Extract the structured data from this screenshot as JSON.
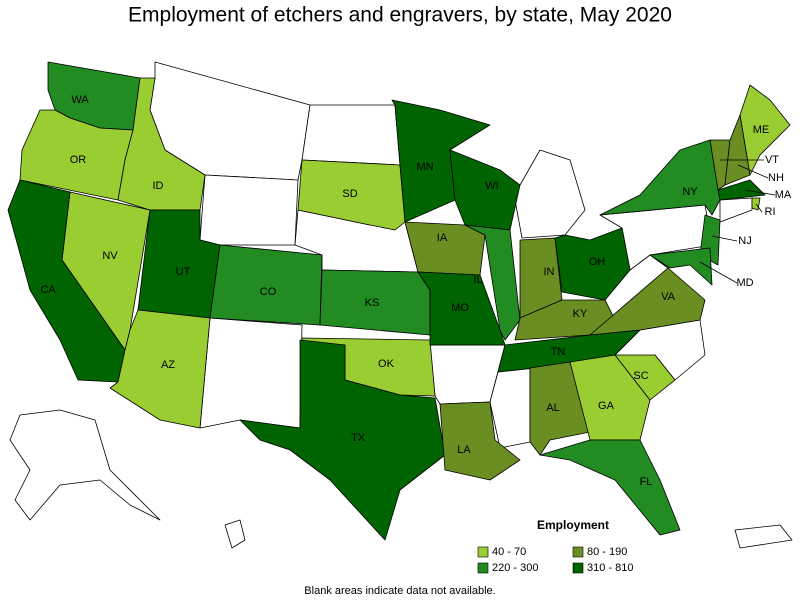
{
  "title": "Employment of etchers and engravers, by state, May 2020",
  "legend": {
    "title": "Employment",
    "classes": [
      {
        "label": "40 - 70",
        "color": "#9acd32"
      },
      {
        "label": "80 - 190",
        "color": "#6b8e23"
      },
      {
        "label": "220 - 300",
        "color": "#228b22"
      },
      {
        "label": "310 - 810",
        "color": "#006400"
      }
    ]
  },
  "states": [
    {
      "abbr": "WA",
      "class": 2
    },
    {
      "abbr": "OR",
      "class": 0
    },
    {
      "abbr": "ID",
      "class": 0
    },
    {
      "abbr": "NV",
      "class": 0
    },
    {
      "abbr": "CA",
      "class": 3
    },
    {
      "abbr": "UT",
      "class": 3
    },
    {
      "abbr": "AZ",
      "class": 0
    },
    {
      "abbr": "CO",
      "class": 2
    },
    {
      "abbr": "SD",
      "class": 0
    },
    {
      "abbr": "KS",
      "class": 2
    },
    {
      "abbr": "OK",
      "class": 0
    },
    {
      "abbr": "TX",
      "class": 3
    },
    {
      "abbr": "MN",
      "class": 3
    },
    {
      "abbr": "IA",
      "class": 1
    },
    {
      "abbr": "MO",
      "class": 3
    },
    {
      "abbr": "LA",
      "class": 1
    },
    {
      "abbr": "WI",
      "class": 3
    },
    {
      "abbr": "IL",
      "class": 2
    },
    {
      "abbr": "IN",
      "class": 1
    },
    {
      "abbr": "KY",
      "class": 1
    },
    {
      "abbr": "TN",
      "class": 3
    },
    {
      "abbr": "AL",
      "class": 1
    },
    {
      "abbr": "GA",
      "class": 0
    },
    {
      "abbr": "FL",
      "class": 2
    },
    {
      "abbr": "SC",
      "class": 0
    },
    {
      "abbr": "OH",
      "class": 3
    },
    {
      "abbr": "VA",
      "class": 1
    },
    {
      "abbr": "NY",
      "class": 2
    },
    {
      "abbr": "ME",
      "class": 0
    },
    {
      "abbr": "VT",
      "class": 1
    },
    {
      "abbr": "NH",
      "class": 1
    },
    {
      "abbr": "MA",
      "class": 3
    },
    {
      "abbr": "RI",
      "class": 0
    },
    {
      "abbr": "NJ",
      "class": 2
    },
    {
      "abbr": "MD",
      "class": 2
    }
  ],
  "note": "Blank areas indicate data not available."
}
